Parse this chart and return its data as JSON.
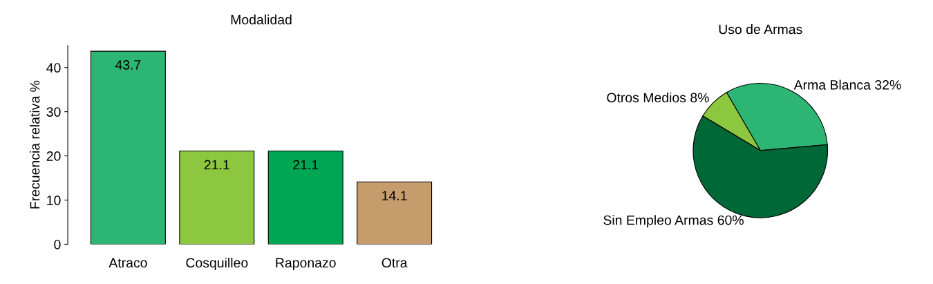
{
  "chart_data": [
    {
      "type": "bar",
      "title": "Modalidad",
      "ylabel": "Frecuencia relativa %",
      "categories": [
        "Atraco",
        "Cosquilleo",
        "Raponazo",
        "Otra"
      ],
      "values": [
        43.7,
        21.1,
        21.1,
        14.1
      ],
      "colors": [
        "#2db673",
        "#8dc63f",
        "#00a651",
        "#c69c6d"
      ],
      "ylim": [
        0,
        45
      ],
      "yticks": [
        0,
        10,
        20,
        30,
        40
      ],
      "data_labels": true,
      "grid": false,
      "legend": false
    },
    {
      "type": "pie",
      "title": "Uso de Armas",
      "categories": [
        "Arma Blanca",
        "Otros Medios",
        "Sin Empleo Armas"
      ],
      "values": [
        32,
        8,
        60
      ],
      "value_labels": [
        "32%",
        "8%",
        "60%"
      ],
      "colors": [
        "#2db673",
        "#8dc63f",
        "#006837"
      ],
      "legend": false
    }
  ]
}
